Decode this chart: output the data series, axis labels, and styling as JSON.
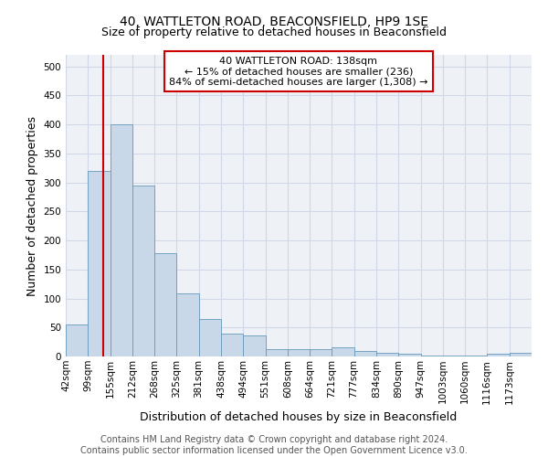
{
  "title1": "40, WATTLETON ROAD, BEACONSFIELD, HP9 1SE",
  "title2": "Size of property relative to detached houses in Beaconsfield",
  "xlabel": "Distribution of detached houses by size in Beaconsfield",
  "ylabel": "Number of detached properties",
  "footer1": "Contains HM Land Registry data © Crown copyright and database right 2024.",
  "footer2": "Contains public sector information licensed under the Open Government Licence v3.0.",
  "annotation_line1": "40 WATTLETON ROAD: 138sqm",
  "annotation_line2": "← 15% of detached houses are smaller (236)",
  "annotation_line3": "84% of semi-detached houses are larger (1,308) →",
  "bar_color": "#c8d8e8",
  "bar_edge_color": "#6699bb",
  "vline_color": "#cc0000",
  "vline_x": 138,
  "annotation_box_edge_color": "#cc0000",
  "categories": [
    "42sqm",
    "99sqm",
    "155sqm",
    "212sqm",
    "268sqm",
    "325sqm",
    "381sqm",
    "438sqm",
    "494sqm",
    "551sqm",
    "608sqm",
    "664sqm",
    "721sqm",
    "777sqm",
    "834sqm",
    "890sqm",
    "947sqm",
    "1003sqm",
    "1060sqm",
    "1116sqm",
    "1173sqm"
  ],
  "bin_edges": [
    42,
    99,
    155,
    212,
    268,
    325,
    381,
    438,
    494,
    551,
    608,
    664,
    721,
    777,
    834,
    890,
    947,
    1003,
    1060,
    1116,
    1173,
    1230
  ],
  "values": [
    55,
    320,
    400,
    295,
    178,
    108,
    65,
    40,
    37,
    12,
    12,
    12,
    15,
    9,
    6,
    4,
    2,
    2,
    1,
    5,
    6
  ],
  "ylim": [
    0,
    520
  ],
  "yticks": [
    0,
    50,
    100,
    150,
    200,
    250,
    300,
    350,
    400,
    450,
    500
  ],
  "grid_color": "#d0d8e8",
  "background_color": "#eef2f7",
  "title_fontsize": 10,
  "subtitle_fontsize": 9,
  "axis_label_fontsize": 9,
  "tick_fontsize": 7.5,
  "footer_fontsize": 7,
  "annotation_fontsize": 8
}
